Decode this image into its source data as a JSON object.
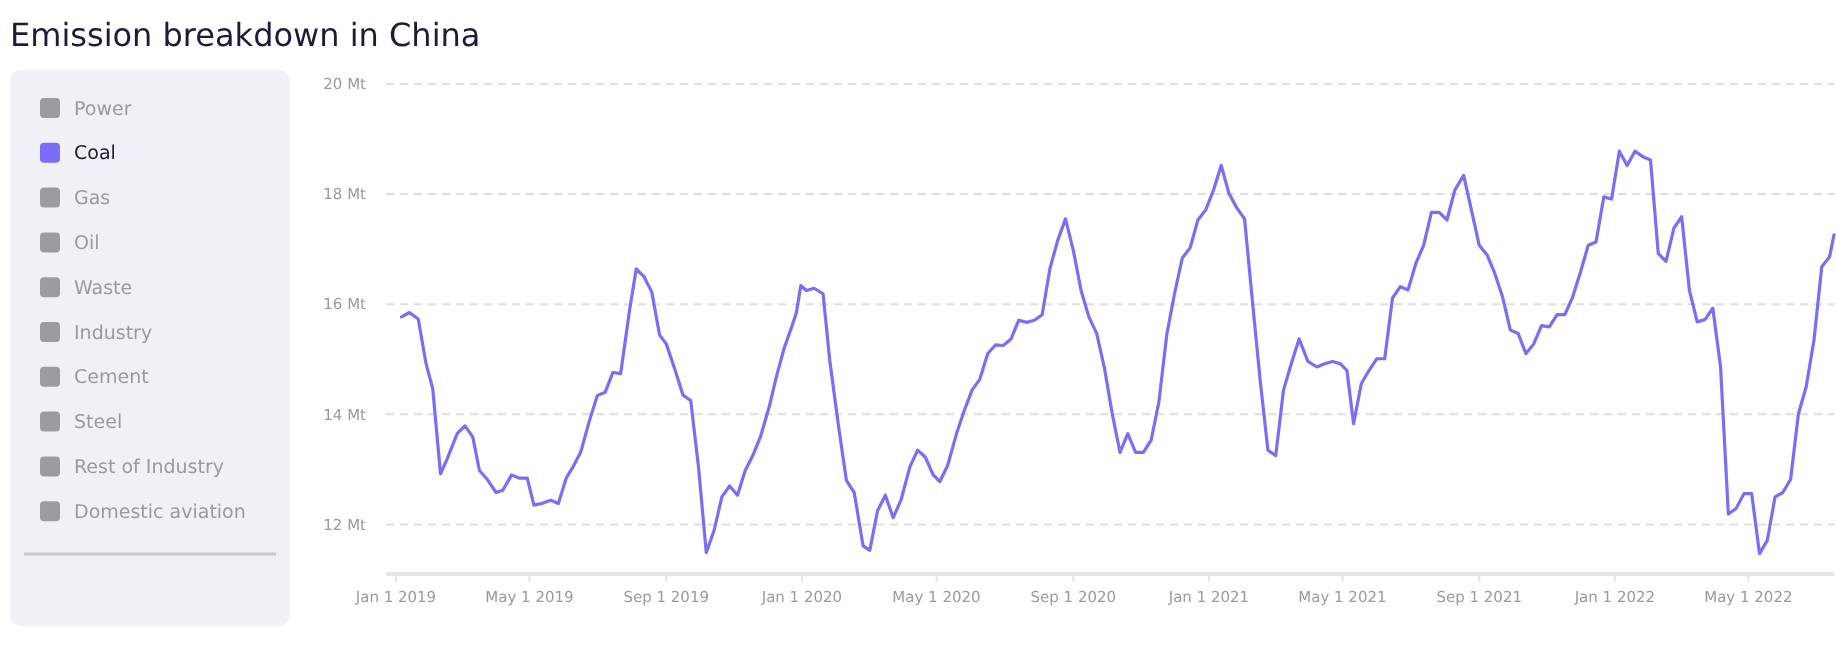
{
  "chart_data": {
    "type": "line",
    "title": "Emission breakdown in China",
    "x": [
      "2019-01-06",
      "2019-01-13",
      "2019-01-21",
      "2019-01-28",
      "2019-02-03",
      "2019-02-10",
      "2019-02-16",
      "2019-02-25",
      "2019-03-04",
      "2019-03-11",
      "2019-03-17",
      "2019-03-24",
      "2019-04-01",
      "2019-04-07",
      "2019-04-15",
      "2019-04-22",
      "2019-04-29",
      "2019-05-05",
      "2019-05-12",
      "2019-05-20",
      "2019-05-27",
      "2019-06-03",
      "2019-06-09",
      "2019-06-16",
      "2019-06-24",
      "2019-07-01",
      "2019-07-08",
      "2019-07-15",
      "2019-07-22",
      "2019-07-30",
      "2019-08-05",
      "2019-08-12",
      "2019-08-19",
      "2019-08-26",
      "2019-09-01",
      "2019-09-09",
      "2019-09-16",
      "2019-09-23",
      "2019-09-30",
      "2019-10-07",
      "2019-10-14",
      "2019-10-21",
      "2019-10-28",
      "2019-11-04",
      "2019-11-11",
      "2019-11-18",
      "2019-11-25",
      "2019-12-03",
      "2019-12-09",
      "2019-12-16",
      "2019-12-23",
      "2019-12-27",
      "2019-12-31",
      "2020-01-05",
      "2020-01-12",
      "2020-01-20",
      "2020-01-26",
      "2020-02-03",
      "2020-02-10",
      "2020-02-17",
      "2020-02-25",
      "2020-03-02",
      "2020-03-09",
      "2020-03-16",
      "2020-03-23",
      "2020-03-30",
      "2020-04-07",
      "2020-04-14",
      "2020-04-21",
      "2020-04-28",
      "2020-05-04",
      "2020-05-11",
      "2020-05-19",
      "2020-05-26",
      "2020-06-02",
      "2020-06-09",
      "2020-06-16",
      "2020-06-23",
      "2020-06-30",
      "2020-07-07",
      "2020-07-14",
      "2020-07-21",
      "2020-07-28",
      "2020-08-04",
      "2020-08-11",
      "2020-08-18",
      "2020-08-25",
      "2020-09-01",
      "2020-09-08",
      "2020-09-15",
      "2020-09-22",
      "2020-09-29",
      "2020-10-06",
      "2020-10-13",
      "2020-10-20",
      "2020-10-27",
      "2020-11-03",
      "2020-11-10",
      "2020-11-17",
      "2020-11-24",
      "2020-12-01",
      "2020-12-08",
      "2020-12-15",
      "2020-12-22",
      "2020-12-29",
      "2021-01-05",
      "2021-01-12",
      "2021-01-19",
      "2021-01-26",
      "2021-02-02",
      "2021-02-09",
      "2021-02-16",
      "2021-02-23",
      "2021-03-02",
      "2021-03-09",
      "2021-03-16",
      "2021-03-23",
      "2021-03-31",
      "2021-04-08",
      "2021-04-15",
      "2021-04-22",
      "2021-04-29",
      "2021-05-05",
      "2021-05-11",
      "2021-05-18",
      "2021-05-25",
      "2021-06-01",
      "2021-06-08",
      "2021-06-15",
      "2021-06-22",
      "2021-06-29",
      "2021-07-06",
      "2021-07-13",
      "2021-07-20",
      "2021-07-27",
      "2021-08-03",
      "2021-08-10",
      "2021-08-18",
      "2021-08-25",
      "2021-09-01",
      "2021-09-08",
      "2021-09-15",
      "2021-09-22",
      "2021-09-29",
      "2021-10-06",
      "2021-10-13",
      "2021-10-20",
      "2021-10-27",
      "2021-11-03",
      "2021-11-10",
      "2021-11-17",
      "2021-11-24",
      "2021-12-01",
      "2021-12-08",
      "2021-12-15",
      "2021-12-22",
      "2021-12-29",
      "2022-01-05",
      "2022-01-12",
      "2022-01-19",
      "2022-01-26",
      "2022-02-02",
      "2022-02-09",
      "2022-02-16",
      "2022-02-23",
      "2022-03-02",
      "2022-03-09",
      "2022-03-16",
      "2022-03-23",
      "2022-03-30",
      "2022-04-06",
      "2022-04-13",
      "2022-04-20",
      "2022-04-27",
      "2022-05-04",
      "2022-05-11",
      "2022-05-18",
      "2022-05-25",
      "2022-06-01",
      "2022-06-08",
      "2022-06-15",
      "2022-06-22",
      "2022-06-29",
      "2022-07-06",
      "2022-07-13",
      "2022-07-17"
    ],
    "series": [
      {
        "name": "Power",
        "color": "#9b9ba0",
        "values": [
          null,
          null,
          null,
          null,
          null,
          null,
          null,
          null,
          null,
          null,
          null,
          null,
          null,
          null,
          null,
          null,
          null,
          null,
          null,
          null,
          null,
          null,
          null,
          null,
          null,
          null,
          null,
          null,
          null,
          null,
          null,
          null,
          null,
          null,
          null,
          null,
          null,
          null,
          null,
          null,
          null,
          null,
          null,
          null,
          null,
          null,
          null,
          null,
          null,
          null,
          null,
          null,
          null,
          null,
          null,
          null,
          null,
          null,
          null,
          null,
          null,
          null,
          null,
          null,
          null,
          null,
          null,
          null,
          null,
          null,
          null,
          null,
          null,
          null,
          null,
          null,
          null,
          null,
          null,
          null,
          null,
          null,
          null,
          null,
          null,
          null,
          null,
          null,
          null,
          null,
          null,
          null,
          null,
          null,
          null,
          null,
          null,
          null,
          null,
          null,
          null,
          null,
          null,
          null,
          null,
          null,
          null,
          null,
          null,
          null,
          null,
          null,
          null,
          null,
          null,
          null,
          null,
          null,
          null,
          null,
          null,
          null,
          null,
          null,
          null,
          null,
          null,
          null,
          null,
          null,
          null,
          null,
          null,
          null,
          null,
          null,
          null,
          null,
          null,
          null,
          null,
          null,
          null,
          null,
          null,
          null,
          null,
          null,
          null,
          null,
          null,
          null,
          null,
          null,
          null,
          null,
          null,
          null,
          null,
          null,
          null,
          null,
          null,
          null,
          null,
          null,
          null,
          null,
          null,
          null,
          null,
          null,
          null,
          null,
          null,
          null,
          null,
          null,
          null,
          null,
          null,
          null,
          null,
          null,
          null,
          null
        ]
      },
      {
        "name": "Coal",
        "color": "#7b6ef6",
        "values": [
          15.77,
          15.85,
          15.73,
          14.92,
          14.47,
          12.92,
          13.19,
          13.65,
          13.79,
          13.59,
          12.98,
          12.82,
          12.58,
          12.62,
          12.9,
          12.84,
          12.84,
          12.35,
          12.38,
          12.44,
          12.38,
          12.84,
          13.04,
          13.31,
          13.89,
          14.34,
          14.4,
          14.76,
          14.74,
          15.89,
          16.64,
          16.5,
          16.22,
          15.44,
          15.28,
          14.8,
          14.35,
          14.25,
          13.04,
          11.49,
          11.89,
          12.5,
          12.7,
          12.53,
          12.98,
          13.26,
          13.61,
          14.17,
          14.68,
          15.2,
          15.6,
          15.85,
          16.34,
          16.25,
          16.29,
          16.19,
          14.98,
          13.77,
          12.8,
          12.58,
          11.61,
          11.53,
          12.25,
          12.53,
          12.12,
          12.44,
          13.04,
          13.35,
          13.22,
          12.9,
          12.78,
          13.07,
          13.65,
          14.07,
          14.44,
          14.64,
          15.1,
          15.26,
          15.25,
          15.37,
          15.71,
          15.67,
          15.71,
          15.81,
          16.65,
          17.16,
          17.55,
          16.98,
          16.25,
          15.77,
          15.47,
          14.84,
          14.01,
          13.31,
          13.65,
          13.31,
          13.31,
          13.53,
          14.23,
          15.44,
          16.19,
          16.84,
          17.02,
          17.53,
          17.71,
          18.07,
          18.52,
          18.01,
          17.75,
          17.55,
          16.07,
          14.62,
          13.35,
          13.25,
          14.44,
          14.92,
          15.37,
          14.96,
          14.86,
          14.92,
          14.96,
          14.92,
          14.8,
          13.83,
          14.56,
          14.8,
          15.01,
          15.01,
          16.11,
          16.32,
          16.26,
          16.74,
          17.07,
          17.67,
          17.67,
          17.53,
          18.07,
          18.34,
          17.71,
          17.07,
          16.9,
          16.56,
          16.13,
          15.53,
          15.47,
          15.1,
          15.28,
          15.61,
          15.59,
          15.81,
          15.81,
          16.13,
          16.58,
          17.07,
          17.13,
          17.95,
          17.91,
          18.78,
          18.52,
          18.78,
          18.68,
          18.62,
          16.92,
          16.78,
          17.38,
          17.59,
          16.25,
          15.68,
          15.72,
          15.93,
          14.86,
          12.19,
          12.29,
          12.56,
          12.56,
          11.47,
          11.71,
          12.5,
          12.58,
          12.82,
          14.01,
          14.5,
          15.35,
          16.68,
          16.86,
          17.26
        ]
      },
      {
        "name": "Gas",
        "color": "#9b9ba0",
        "values": [
          null,
          null,
          null,
          null,
          null,
          null,
          null,
          null,
          null,
          null,
          null,
          null,
          null,
          null,
          null,
          null,
          null,
          null,
          null,
          null,
          null,
          null,
          null,
          null,
          null,
          null,
          null,
          null,
          null,
          null,
          null,
          null,
          null,
          null,
          null,
          null,
          null,
          null,
          null,
          null,
          null,
          null,
          null,
          null,
          null,
          null,
          null,
          null,
          null,
          null,
          null,
          null,
          null,
          null,
          null,
          null,
          null,
          null,
          null,
          null,
          null,
          null,
          null,
          null,
          null,
          null,
          null,
          null,
          null,
          null,
          null,
          null,
          null,
          null,
          null,
          null,
          null,
          null,
          null,
          null,
          null,
          null,
          null,
          null,
          null,
          null,
          null,
          null,
          null,
          null,
          null,
          null,
          null,
          null,
          null,
          null,
          null,
          null,
          null,
          null,
          null,
          null,
          null,
          null,
          null,
          null,
          null,
          null,
          null,
          null,
          null,
          null,
          null,
          null,
          null,
          null,
          null,
          null,
          null,
          null,
          null,
          null,
          null,
          null,
          null,
          null,
          null,
          null,
          null,
          null,
          null,
          null,
          null,
          null,
          null,
          null,
          null,
          null,
          null,
          null,
          null,
          null,
          null,
          null,
          null,
          null,
          null,
          null,
          null,
          null,
          null,
          null,
          null,
          null,
          null,
          null,
          null,
          null,
          null,
          null,
          null,
          null,
          null,
          null,
          null,
          null,
          null,
          null,
          null,
          null,
          null,
          null,
          null,
          null,
          null,
          null,
          null,
          null,
          null,
          null,
          null,
          null,
          null,
          null,
          null,
          null
        ]
      },
      {
        "name": "Oil",
        "color": "#9b9ba0",
        "values": [
          null,
          null,
          null,
          null,
          null,
          null,
          null,
          null,
          null,
          null,
          null,
          null,
          null,
          null,
          null,
          null,
          null,
          null,
          null,
          null,
          null,
          null,
          null,
          null,
          null,
          null,
          null,
          null,
          null,
          null,
          null,
          null,
          null,
          null,
          null,
          null,
          null,
          null,
          null,
          null,
          null,
          null,
          null,
          null,
          null,
          null,
          null,
          null,
          null,
          null,
          null,
          null,
          null,
          null,
          null,
          null,
          null,
          null,
          null,
          null,
          null,
          null,
          null,
          null,
          null,
          null,
          null,
          null,
          null,
          null,
          null,
          null,
          null,
          null,
          null,
          null,
          null,
          null,
          null,
          null,
          null,
          null,
          null,
          null,
          null,
          null,
          null,
          null,
          null,
          null,
          null,
          null,
          null,
          null,
          null,
          null,
          null,
          null,
          null,
          null,
          null,
          null,
          null,
          null,
          null,
          null,
          null,
          null,
          null,
          null,
          null,
          null,
          null,
          null,
          null,
          null,
          null,
          null,
          null,
          null,
          null,
          null,
          null,
          null,
          null,
          null,
          null,
          null,
          null,
          null,
          null,
          null,
          null,
          null,
          null,
          null,
          null,
          null,
          null,
          null,
          null,
          null,
          null,
          null,
          null,
          null,
          null,
          null,
          null,
          null,
          null,
          null,
          null,
          null,
          null,
          null,
          null,
          null,
          null,
          null,
          null,
          null,
          null,
          null,
          null,
          null,
          null,
          null,
          null,
          null,
          null,
          null,
          null,
          null,
          null,
          null,
          null,
          null,
          null,
          null,
          null,
          null,
          null,
          null,
          null,
          null
        ]
      },
      {
        "name": "Waste",
        "color": "#9b9ba0",
        "values": [
          null,
          null,
          null,
          null,
          null,
          null,
          null,
          null,
          null,
          null,
          null,
          null,
          null,
          null,
          null,
          null,
          null,
          null,
          null,
          null,
          null,
          null,
          null,
          null,
          null,
          null,
          null,
          null,
          null,
          null,
          null,
          null,
          null,
          null,
          null,
          null,
          null,
          null,
          null,
          null,
          null,
          null,
          null,
          null,
          null,
          null,
          null,
          null,
          null,
          null,
          null,
          null,
          null,
          null,
          null,
          null,
          null,
          null,
          null,
          null,
          null,
          null,
          null,
          null,
          null,
          null,
          null,
          null,
          null,
          null,
          null,
          null,
          null,
          null,
          null,
          null,
          null,
          null,
          null,
          null,
          null,
          null,
          null,
          null,
          null,
          null,
          null,
          null,
          null,
          null,
          null,
          null,
          null,
          null,
          null,
          null,
          null,
          null,
          null,
          null,
          null,
          null,
          null,
          null,
          null,
          null,
          null,
          null,
          null,
          null,
          null,
          null,
          null,
          null,
          null,
          null,
          null,
          null,
          null,
          null,
          null,
          null,
          null,
          null,
          null,
          null,
          null,
          null,
          null,
          null,
          null,
          null,
          null,
          null,
          null,
          null,
          null,
          null,
          null,
          null,
          null,
          null,
          null,
          null,
          null,
          null,
          null,
          null,
          null,
          null,
          null,
          null,
          null,
          null,
          null,
          null,
          null,
          null,
          null,
          null,
          null,
          null,
          null,
          null,
          null,
          null,
          null,
          null,
          null,
          null,
          null,
          null,
          null,
          null,
          null,
          null,
          null,
          null,
          null,
          null,
          null,
          null,
          null,
          null,
          null,
          null
        ]
      },
      {
        "name": "Industry",
        "color": "#9b9ba0",
        "values": [
          null,
          null,
          null,
          null,
          null,
          null,
          null,
          null,
          null,
          null,
          null,
          null,
          null,
          null,
          null,
          null,
          null,
          null,
          null,
          null,
          null,
          null,
          null,
          null,
          null,
          null,
          null,
          null,
          null,
          null,
          null,
          null,
          null,
          null,
          null,
          null,
          null,
          null,
          null,
          null,
          null,
          null,
          null,
          null,
          null,
          null,
          null,
          null,
          null,
          null,
          null,
          null,
          null,
          null,
          null,
          null,
          null,
          null,
          null,
          null,
          null,
          null,
          null,
          null,
          null,
          null,
          null,
          null,
          null,
          null,
          null,
          null,
          null,
          null,
          null,
          null,
          null,
          null,
          null,
          null,
          null,
          null,
          null,
          null,
          null,
          null,
          null,
          null,
          null,
          null,
          null,
          null,
          null,
          null,
          null,
          null,
          null,
          null,
          null,
          null,
          null,
          null,
          null,
          null,
          null,
          null,
          null,
          null,
          null,
          null,
          null,
          null,
          null,
          null,
          null,
          null,
          null,
          null,
          null,
          null,
          null,
          null,
          null,
          null,
          null,
          null,
          null,
          null,
          null,
          null,
          null,
          null,
          null,
          null,
          null,
          null,
          null,
          null,
          null,
          null,
          null,
          null,
          null,
          null,
          null,
          null,
          null,
          null,
          null,
          null,
          null,
          null,
          null,
          null,
          null,
          null,
          null,
          null,
          null,
          null,
          null,
          null,
          null,
          null,
          null,
          null,
          null,
          null,
          null,
          null,
          null,
          null,
          null,
          null,
          null,
          null,
          null,
          null,
          null,
          null,
          null,
          null,
          null,
          null,
          null,
          null
        ]
      },
      {
        "name": "Cement",
        "color": "#9b9ba0",
        "values": [
          null,
          null,
          null,
          null,
          null,
          null,
          null,
          null,
          null,
          null,
          null,
          null,
          null,
          null,
          null,
          null,
          null,
          null,
          null,
          null,
          null,
          null,
          null,
          null,
          null,
          null,
          null,
          null,
          null,
          null,
          null,
          null,
          null,
          null,
          null,
          null,
          null,
          null,
          null,
          null,
          null,
          null,
          null,
          null,
          null,
          null,
          null,
          null,
          null,
          null,
          null,
          null,
          null,
          null,
          null,
          null,
          null,
          null,
          null,
          null,
          null,
          null,
          null,
          null,
          null,
          null,
          null,
          null,
          null,
          null,
          null,
          null,
          null,
          null,
          null,
          null,
          null,
          null,
          null,
          null,
          null,
          null,
          null,
          null,
          null,
          null,
          null,
          null,
          null,
          null,
          null,
          null,
          null,
          null,
          null,
          null,
          null,
          null,
          null,
          null,
          null,
          null,
          null,
          null,
          null,
          null,
          null,
          null,
          null,
          null,
          null,
          null,
          null,
          null,
          null,
          null,
          null,
          null,
          null,
          null,
          null,
          null,
          null,
          null,
          null,
          null,
          null,
          null,
          null,
          null,
          null,
          null,
          null,
          null,
          null,
          null,
          null,
          null,
          null,
          null,
          null,
          null,
          null,
          null,
          null,
          null,
          null,
          null,
          null,
          null,
          null,
          null,
          null,
          null,
          null,
          null,
          null,
          null,
          null,
          null,
          null,
          null,
          null,
          null,
          null,
          null,
          null,
          null,
          null,
          null,
          null,
          null,
          null,
          null,
          null,
          null,
          null,
          null,
          null,
          null,
          null,
          null,
          null,
          null,
          null,
          null
        ]
      },
      {
        "name": "Steel",
        "color": "#9b9ba0",
        "values": [
          null,
          null,
          null,
          null,
          null,
          null,
          null,
          null,
          null,
          null,
          null,
          null,
          null,
          null,
          null,
          null,
          null,
          null,
          null,
          null,
          null,
          null,
          null,
          null,
          null,
          null,
          null,
          null,
          null,
          null,
          null,
          null,
          null,
          null,
          null,
          null,
          null,
          null,
          null,
          null,
          null,
          null,
          null,
          null,
          null,
          null,
          null,
          null,
          null,
          null,
          null,
          null,
          null,
          null,
          null,
          null,
          null,
          null,
          null,
          null,
          null,
          null,
          null,
          null,
          null,
          null,
          null,
          null,
          null,
          null,
          null,
          null,
          null,
          null,
          null,
          null,
          null,
          null,
          null,
          null,
          null,
          null,
          null,
          null,
          null,
          null,
          null,
          null,
          null,
          null,
          null,
          null,
          null,
          null,
          null,
          null,
          null,
          null,
          null,
          null,
          null,
          null,
          null,
          null,
          null,
          null,
          null,
          null,
          null,
          null,
          null,
          null,
          null,
          null,
          null,
          null,
          null,
          null,
          null,
          null,
          null,
          null,
          null,
          null,
          null,
          null,
          null,
          null,
          null,
          null,
          null,
          null,
          null,
          null,
          null,
          null,
          null,
          null,
          null,
          null,
          null,
          null,
          null,
          null,
          null,
          null,
          null,
          null,
          null,
          null,
          null,
          null,
          null,
          null,
          null,
          null,
          null,
          null,
          null,
          null,
          null,
          null,
          null,
          null,
          null,
          null,
          null,
          null,
          null,
          null,
          null,
          null,
          null,
          null,
          null,
          null,
          null,
          null,
          null,
          null,
          null,
          null,
          null,
          null,
          null,
          null
        ]
      },
      {
        "name": "Rest of Industry",
        "color": "#9b9ba0",
        "values": [
          null,
          null,
          null,
          null,
          null,
          null,
          null,
          null,
          null,
          null,
          null,
          null,
          null,
          null,
          null,
          null,
          null,
          null,
          null,
          null,
          null,
          null,
          null,
          null,
          null,
          null,
          null,
          null,
          null,
          null,
          null,
          null,
          null,
          null,
          null,
          null,
          null,
          null,
          null,
          null,
          null,
          null,
          null,
          null,
          null,
          null,
          null,
          null,
          null,
          null,
          null,
          null,
          null,
          null,
          null,
          null,
          null,
          null,
          null,
          null,
          null,
          null,
          null,
          null,
          null,
          null,
          null,
          null,
          null,
          null,
          null,
          null,
          null,
          null,
          null,
          null,
          null,
          null,
          null,
          null,
          null,
          null,
          null,
          null,
          null,
          null,
          null,
          null,
          null,
          null,
          null,
          null,
          null,
          null,
          null,
          null,
          null,
          null,
          null,
          null,
          null,
          null,
          null,
          null,
          null,
          null,
          null,
          null,
          null,
          null,
          null,
          null,
          null,
          null,
          null,
          null,
          null,
          null,
          null,
          null,
          null,
          null,
          null,
          null,
          null,
          null,
          null,
          null,
          null,
          null,
          null,
          null,
          null,
          null,
          null,
          null,
          null,
          null,
          null,
          null,
          null,
          null,
          null,
          null,
          null,
          null,
          null,
          null,
          null,
          null,
          null,
          null,
          null,
          null,
          null,
          null,
          null,
          null,
          null,
          null,
          null,
          null,
          null,
          null,
          null,
          null,
          null,
          null,
          null,
          null,
          null,
          null,
          null,
          null,
          null,
          null,
          null,
          null,
          null,
          null,
          null,
          null,
          null,
          null,
          null,
          null
        ]
      },
      {
        "name": "Domestic aviation",
        "color": "#9b9ba0",
        "values": [
          null,
          null,
          null,
          null,
          null,
          null,
          null,
          null,
          null,
          null,
          null,
          null,
          null,
          null,
          null,
          null,
          null,
          null,
          null,
          null,
          null,
          null,
          null,
          null,
          null,
          null,
          null,
          null,
          null,
          null,
          null,
          null,
          null,
          null,
          null,
          null,
          null,
          null,
          null,
          null,
          null,
          null,
          null,
          null,
          null,
          null,
          null,
          null,
          null,
          null,
          null,
          null,
          null,
          null,
          null,
          null,
          null,
          null,
          null,
          null,
          null,
          null,
          null,
          null,
          null,
          null,
          null,
          null,
          null,
          null,
          null,
          null,
          null,
          null,
          null,
          null,
          null,
          null,
          null,
          null,
          null,
          null,
          null,
          null,
          null,
          null,
          null,
          null,
          null,
          null,
          null,
          null,
          null,
          null,
          null,
          null,
          null,
          null,
          null,
          null,
          null,
          null,
          null,
          null,
          null,
          null,
          null,
          null,
          null,
          null,
          null,
          null,
          null,
          null,
          null,
          null,
          null,
          null,
          null,
          null,
          null,
          null,
          null,
          null,
          null,
          null,
          null,
          null,
          null,
          null,
          null,
          null,
          null,
          null,
          null,
          null,
          null,
          null,
          null,
          null,
          null,
          null,
          null,
          null,
          null,
          null,
          null,
          null,
          null,
          null,
          null,
          null,
          null,
          null,
          null,
          null,
          null,
          null,
          null,
          null,
          null,
          null,
          null,
          null,
          null,
          null,
          null,
          null,
          null,
          null,
          null,
          null,
          null,
          null,
          null,
          null,
          null,
          null,
          null,
          null,
          null,
          null,
          null,
          null,
          null,
          null
        ]
      }
    ],
    "xlim": [
      "2018-12-23",
      "2022-07-17"
    ],
    "xticks": [
      {
        "value": "2019-01-01",
        "label": "Jan 1 2019"
      },
      {
        "value": "2019-05-01",
        "label": "May 1 2019"
      },
      {
        "value": "2019-09-01",
        "label": "Sep 1 2019"
      },
      {
        "value": "2020-01-01",
        "label": "Jan 1 2020"
      },
      {
        "value": "2020-05-01",
        "label": "May 1 2020"
      },
      {
        "value": "2020-09-01",
        "label": "Sep 1 2020"
      },
      {
        "value": "2021-01-01",
        "label": "Jan 1 2021"
      },
      {
        "value": "2021-05-01",
        "label": "May 1 2021"
      },
      {
        "value": "2021-09-01",
        "label": "Sep 1 2021"
      },
      {
        "value": "2022-01-01",
        "label": "Jan 1 2022"
      },
      {
        "value": "2022-05-01",
        "label": "May 1 2022"
      }
    ],
    "ylim": [
      11.1,
      20
    ],
    "yticks": [
      {
        "value": 12,
        "label": "12 Mt"
      },
      {
        "value": 14,
        "label": "14 Mt"
      },
      {
        "value": 16,
        "label": "16 Mt"
      },
      {
        "value": 18,
        "label": "18 Mt"
      },
      {
        "value": 20,
        "label": "20 Mt"
      }
    ],
    "grid": "y",
    "legend": "left",
    "marker": "none",
    "line_style": "solid"
  }
}
